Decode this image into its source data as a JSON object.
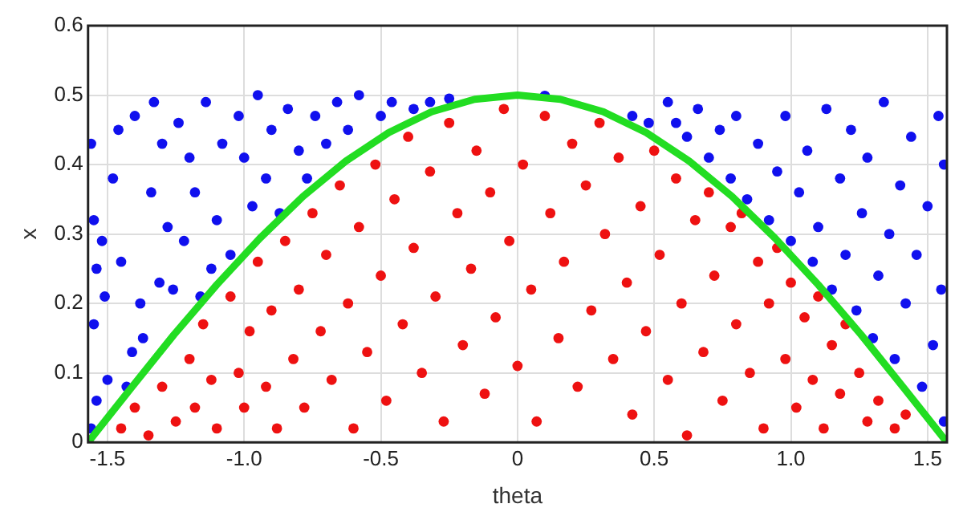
{
  "chart_data": {
    "type": "scatter",
    "xlabel": "theta",
    "ylabel": "x",
    "xlim": [
      -1.571,
      1.571
    ],
    "ylim": [
      0,
      0.6
    ],
    "xticks": [
      -1.5,
      {
        "value": -1,
        "label": "-1.0"
      },
      -0.5,
      0,
      0.5,
      {
        "value": 1,
        "label": "1.0"
      },
      1.5
    ],
    "yticks": [
      0,
      0.1,
      0.2,
      0.3,
      0.4,
      0.5,
      0.6
    ],
    "grid": true,
    "marker": "circle",
    "series": [
      {
        "type": "scatter",
        "color": "#1010ee",
        "x": [
          -1.56,
          -1.55,
          -1.54,
          -1.55,
          -1.54,
          -1.56,
          -1.52,
          -1.51,
          -1.5,
          -1.48,
          -1.46,
          -1.45,
          -1.43,
          -1.41,
          -1.4,
          -1.38,
          -1.37,
          -1.34,
          -1.33,
          -1.31,
          -1.3,
          -1.28,
          -1.26,
          -1.24,
          -1.22,
          -1.2,
          -1.18,
          -1.16,
          -1.14,
          -1.12,
          -1.1,
          -1.08,
          -1.05,
          -1.02,
          -1,
          -0.97,
          -0.95,
          -0.92,
          -0.9,
          -0.87,
          -0.84,
          -0.8,
          -0.77,
          -0.74,
          -0.7,
          -0.66,
          -0.62,
          -0.58,
          -0.5,
          -0.46,
          -0.38,
          -0.32,
          -0.25,
          0.1,
          0.42,
          0.48,
          0.55,
          0.58,
          0.62,
          0.66,
          0.7,
          0.74,
          0.78,
          0.8,
          0.84,
          0.88,
          0.92,
          0.95,
          0.98,
          1,
          1.03,
          1.06,
          1.08,
          1.1,
          1.13,
          1.15,
          1.18,
          1.2,
          1.22,
          1.24,
          1.26,
          1.28,
          1.3,
          1.32,
          1.34,
          1.36,
          1.38,
          1.4,
          1.42,
          1.44,
          1.46,
          1.48,
          1.5,
          1.52,
          1.54,
          1.55,
          1.56,
          1.56
        ],
        "values": [
          0.43,
          0.32,
          0.25,
          0.17,
          0.06,
          0.02,
          0.29,
          0.21,
          0.09,
          0.38,
          0.45,
          0.26,
          0.08,
          0.13,
          0.47,
          0.2,
          0.15,
          0.36,
          0.49,
          0.23,
          0.43,
          0.31,
          0.22,
          0.46,
          0.29,
          0.41,
          0.36,
          0.21,
          0.49,
          0.25,
          0.32,
          0.43,
          0.27,
          0.47,
          0.41,
          0.34,
          0.5,
          0.38,
          0.45,
          0.33,
          0.48,
          0.42,
          0.38,
          0.47,
          0.43,
          0.49,
          0.45,
          0.5,
          0.47,
          0.49,
          0.48,
          0.49,
          0.495,
          0.499,
          0.47,
          0.46,
          0.49,
          0.46,
          0.44,
          0.48,
          0.41,
          0.45,
          0.38,
          0.47,
          0.35,
          0.43,
          0.32,
          0.39,
          0.47,
          0.29,
          0.36,
          0.42,
          0.26,
          0.31,
          0.48,
          0.22,
          0.38,
          0.27,
          0.45,
          0.19,
          0.33,
          0.41,
          0.15,
          0.24,
          0.49,
          0.3,
          0.12,
          0.37,
          0.2,
          0.44,
          0.27,
          0.08,
          0.34,
          0.14,
          0.47,
          0.22,
          0.03,
          0.4
        ]
      },
      {
        "type": "scatter",
        "color": "#ee1111",
        "x": [
          -1.45,
          -1.4,
          -1.35,
          -1.3,
          -1.25,
          -1.2,
          -1.18,
          -1.15,
          -1.12,
          -1.1,
          -1.05,
          -1.02,
          -1,
          -0.98,
          -0.95,
          -0.92,
          -0.9,
          -0.88,
          -0.85,
          -0.82,
          -0.8,
          -0.78,
          -0.75,
          -0.72,
          -0.7,
          -0.68,
          -0.65,
          -0.62,
          -0.6,
          -0.58,
          -0.55,
          -0.52,
          -0.5,
          -0.48,
          -0.45,
          -0.42,
          -0.4,
          -0.38,
          -0.35,
          -0.32,
          -0.3,
          -0.27,
          -0.25,
          -0.22,
          -0.2,
          -0.17,
          -0.15,
          -0.12,
          -0.1,
          -0.08,
          -0.05,
          -0.03,
          0,
          0.02,
          0.05,
          0.07,
          0.1,
          0.12,
          0.15,
          0.17,
          0.2,
          0.22,
          0.25,
          0.27,
          0.3,
          0.32,
          0.35,
          0.37,
          0.4,
          0.42,
          0.45,
          0.47,
          0.5,
          0.52,
          0.55,
          0.58,
          0.6,
          0.62,
          0.65,
          0.68,
          0.7,
          0.72,
          0.75,
          0.78,
          0.8,
          0.82,
          0.85,
          0.88,
          0.9,
          0.92,
          0.95,
          0.98,
          1,
          1.02,
          1.05,
          1.08,
          1.1,
          1.12,
          1.15,
          1.18,
          1.2,
          1.25,
          1.28,
          1.32,
          1.38,
          1.42
        ],
        "values": [
          0.02,
          0.05,
          0.01,
          0.08,
          0.03,
          0.12,
          0.05,
          0.17,
          0.09,
          0.02,
          0.21,
          0.1,
          0.05,
          0.16,
          0.26,
          0.08,
          0.19,
          0.02,
          0.29,
          0.12,
          0.22,
          0.05,
          0.33,
          0.16,
          0.27,
          0.09,
          0.37,
          0.2,
          0.02,
          0.31,
          0.13,
          0.4,
          0.24,
          0.06,
          0.35,
          0.17,
          0.44,
          0.28,
          0.1,
          0.39,
          0.21,
          0.03,
          0.46,
          0.33,
          0.14,
          0.25,
          0.42,
          0.07,
          0.36,
          0.18,
          0.48,
          0.29,
          0.11,
          0.4,
          0.22,
          0.03,
          0.47,
          0.33,
          0.15,
          0.26,
          0.43,
          0.08,
          0.37,
          0.19,
          0.46,
          0.3,
          0.12,
          0.41,
          0.23,
          0.04,
          0.34,
          0.16,
          0.42,
          0.27,
          0.09,
          0.38,
          0.2,
          0.01,
          0.32,
          0.13,
          0.36,
          0.24,
          0.06,
          0.31,
          0.17,
          0.33,
          0.1,
          0.26,
          0.02,
          0.2,
          0.28,
          0.12,
          0.23,
          0.05,
          0.18,
          0.09,
          0.21,
          0.02,
          0.14,
          0.07,
          0.17,
          0.1,
          0.03,
          0.06,
          0.02,
          0.04
        ]
      },
      {
        "type": "line",
        "color": "#22dd22",
        "marker": "none",
        "line_style": "solid",
        "x": [
          -1.571,
          -1.414,
          -1.257,
          -1.1,
          -0.942,
          -0.785,
          -0.628,
          -0.471,
          -0.314,
          -0.157,
          0,
          0.157,
          0.314,
          0.471,
          0.628,
          0.785,
          0.942,
          1.1,
          1.257,
          1.414,
          1.571
        ],
        "values": [
          0,
          0.078,
          0.155,
          0.227,
          0.294,
          0.354,
          0.405,
          0.446,
          0.476,
          0.494,
          0.5,
          0.494,
          0.476,
          0.446,
          0.405,
          0.354,
          0.294,
          0.227,
          0.155,
          0.078,
          0
        ]
      }
    ]
  }
}
